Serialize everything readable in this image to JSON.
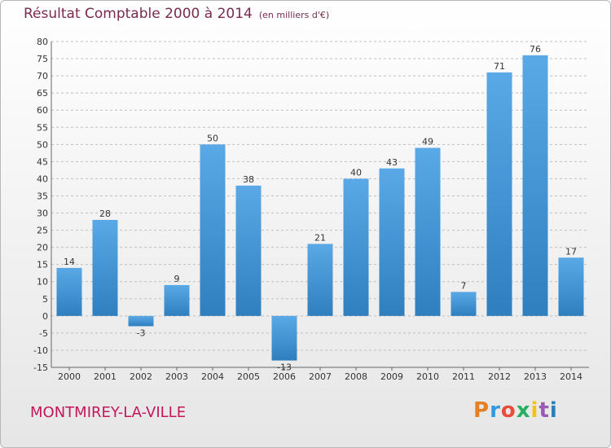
{
  "title": "Résultat Comptable 2000 à 2014",
  "subtitle": "(en milliers d'€)",
  "commune": "MONTMIREY-LA-VILLE",
  "logo": {
    "text": "Proxiti",
    "letters": [
      "P",
      "r",
      "o",
      "x",
      "i",
      "t",
      "i"
    ],
    "colors": [
      "#e67e22",
      "#3498db",
      "#e74c3c",
      "#27ae60",
      "#f1c40f",
      "#9b59b6",
      "#2980b9"
    ]
  },
  "colors": {
    "title": "#7a2a4f",
    "commune": "#c2185b",
    "bar_top": "#5aa9e6",
    "bar_bottom": "#2f7fbf",
    "grid": "#bfbfbf"
  },
  "chart_data": {
    "type": "bar",
    "title": "Résultat Comptable 2000 à 2014",
    "subtitle": "(en milliers d'€)",
    "categories": [
      "2000",
      "2001",
      "2002",
      "2003",
      "2004",
      "2005",
      "2006",
      "2007",
      "2008",
      "2009",
      "2010",
      "2011",
      "2012",
      "2013",
      "2014"
    ],
    "values": [
      14,
      28,
      -3,
      9,
      50,
      38,
      -13,
      21,
      40,
      43,
      49,
      7,
      71,
      76,
      17
    ],
    "ylim": [
      -15,
      80
    ],
    "yticks": [
      -15,
      -10,
      -5,
      0,
      5,
      10,
      15,
      20,
      25,
      30,
      35,
      40,
      45,
      50,
      55,
      60,
      65,
      70,
      75,
      80
    ],
    "grid": true,
    "legend": false
  }
}
